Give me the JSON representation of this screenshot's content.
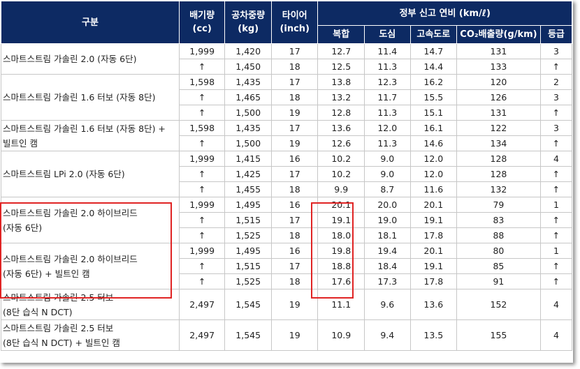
{
  "header": {
    "category": "구분",
    "displacement": "배기량\n(cc)",
    "curb_weight": "공차중량\n(kg)",
    "tire": "타이어\n(inch)",
    "fuel_economy": "정부 신고 연비 (km/ℓ)",
    "combined": "복합",
    "city": "도심",
    "highway": "고속도로",
    "co2": "CO₂배출량(g/km)",
    "grade": "등급"
  },
  "groups": [
    {
      "label": "스마트스트림 가솔린 2.0 (자동 6단)",
      "rows": [
        [
          "1,999",
          "1,420",
          "17",
          "12.7",
          "11.4",
          "14.7",
          "131",
          "3"
        ],
        [
          "↑",
          "1,450",
          "18",
          "12.5",
          "11.3",
          "14.4",
          "133",
          "↑"
        ]
      ]
    },
    {
      "label": "스마트스트림 가솔린 1.6 터보 (자동 8단)",
      "rows": [
        [
          "1,598",
          "1,435",
          "17",
          "13.8",
          "12.3",
          "16.2",
          "120",
          "2"
        ],
        [
          "↑",
          "1,465",
          "18",
          "13.2",
          "11.7",
          "15.5",
          "126",
          "3"
        ],
        [
          "↑",
          "1,500",
          "19",
          "12.8",
          "11.3",
          "15.1",
          "131",
          "↑"
        ]
      ]
    },
    {
      "label": "스마트스트림 가솔린 1.6 터보 (자동 8단) +\n빌트인 캠",
      "rows": [
        [
          "1,598",
          "1,435",
          "17",
          "13.6",
          "12.0",
          "16.1",
          "122",
          "3"
        ],
        [
          "↑",
          "1,500",
          "19",
          "12.6",
          "11.3",
          "14.6",
          "134",
          "↑"
        ]
      ]
    },
    {
      "label": "스마트스트림 LPi 2.0 (자동 6단)",
      "rows": [
        [
          "1,999",
          "1,415",
          "16",
          "10.2",
          "9.0",
          "12.0",
          "128",
          "4"
        ],
        [
          "↑",
          "1,425",
          "17",
          "10.2",
          "9.0",
          "12.0",
          "128",
          "↑"
        ],
        [
          "↑",
          "1,455",
          "18",
          "9.9",
          "8.7",
          "11.6",
          "132",
          "↑"
        ]
      ]
    },
    {
      "label": "스마트스트림 가솔린 2.0 하이브리드\n(자동 6단)",
      "rows": [
        [
          "1,999",
          "1,495",
          "16",
          "20.1",
          "20.0",
          "20.1",
          "79",
          "1"
        ],
        [
          "↑",
          "1,515",
          "17",
          "19.1",
          "19.0",
          "19.1",
          "83",
          "↑"
        ],
        [
          "↑",
          "1,525",
          "18",
          "18.0",
          "18.1",
          "17.8",
          "88",
          "↑"
        ]
      ]
    },
    {
      "label": "스마트스트림 가솔린 2.0 하이브리드\n(자동 6단) + 빌트인 캠",
      "rows": [
        [
          "1,999",
          "1,495",
          "16",
          "19.8",
          "19.4",
          "20.1",
          "80",
          "1"
        ],
        [
          "↑",
          "1,515",
          "17",
          "18.8",
          "18.4",
          "19.1",
          "85",
          "↑"
        ],
        [
          "↑",
          "1,525",
          "18",
          "17.6",
          "17.3",
          "17.8",
          "91",
          "↑"
        ]
      ]
    },
    {
      "label": "스마트스트림 가솔린 2.5 터보\n(8단 습식 N DCT)",
      "rows": [
        [
          "2,497",
          "1,545",
          "19",
          "11.1",
          "9.6",
          "13.6",
          "152",
          "4"
        ]
      ]
    },
    {
      "label": "스마트스트림 가솔린 2.5 터보\n(8단 습식 N DCT) + 빌트인 캠",
      "rows": [
        [
          "2,497",
          "1,545",
          "19",
          "10.9",
          "9.4",
          "13.5",
          "155",
          "4"
        ]
      ]
    }
  ],
  "colors": {
    "header_bg": "#0d2a63",
    "header_text": "#ffffff",
    "highlight_border": "#e02424",
    "grid": "#c7c7c7"
  }
}
